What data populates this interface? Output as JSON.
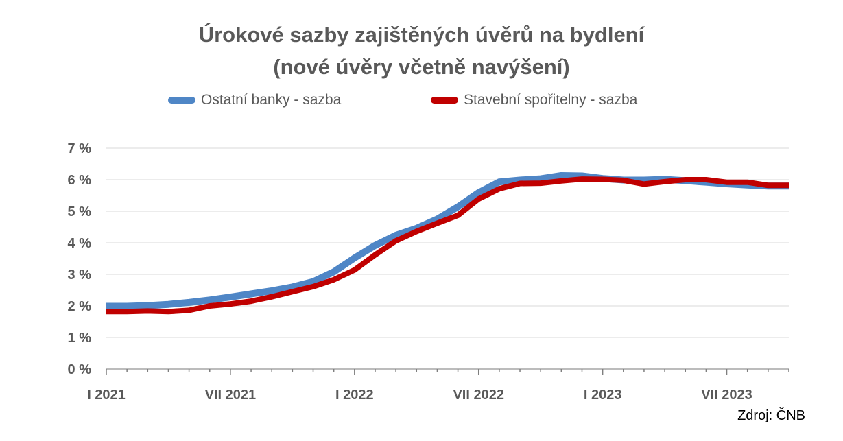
{
  "chart_data": {
    "type": "line",
    "title": "Úrokové sazby zajištěných úvěrů na bydlení",
    "subtitle": "(nové úvěry včetně navýšení)",
    "xlabel": "",
    "ylabel": "",
    "ylim": [
      0,
      7
    ],
    "y_ticks": [
      "0 %",
      "1 %",
      "2 %",
      "3 %",
      "4 %",
      "5 %",
      "6 %",
      "7 %"
    ],
    "x_tick_labels": [
      "I 2021",
      "VII 2021",
      "I 2022",
      "VII 2022",
      "I 2023",
      "VII 2023"
    ],
    "x": [
      "2021-01",
      "2021-02",
      "2021-03",
      "2021-04",
      "2021-05",
      "2021-06",
      "2021-07",
      "2021-08",
      "2021-09",
      "2021-10",
      "2021-11",
      "2021-12",
      "2022-01",
      "2022-02",
      "2022-03",
      "2022-04",
      "2022-05",
      "2022-06",
      "2022-07",
      "2022-08",
      "2022-09",
      "2022-10",
      "2022-11",
      "2022-12",
      "2023-01",
      "2023-02",
      "2023-03",
      "2023-04",
      "2023-05",
      "2023-06",
      "2023-07",
      "2023-08",
      "2023-09",
      "2023-10"
    ],
    "grid": true,
    "legend_position": "top",
    "series": [
      {
        "name": "Ostatní banky - sazba",
        "color": "#4F86C6",
        "values": [
          1.99,
          1.99,
          2.01,
          2.05,
          2.11,
          2.19,
          2.28,
          2.38,
          2.48,
          2.6,
          2.77,
          3.08,
          3.52,
          3.92,
          4.24,
          4.46,
          4.75,
          5.14,
          5.59,
          5.93,
          5.99,
          6.03,
          6.13,
          6.12,
          6.04,
          5.99,
          5.99,
          6.01,
          5.97,
          5.92,
          5.87,
          5.83,
          5.8,
          5.8
        ]
      },
      {
        "name": "Stavební spořitelny - sazba",
        "color": "#C00000",
        "values": [
          1.82,
          1.82,
          1.84,
          1.82,
          1.86,
          2.0,
          2.06,
          2.15,
          2.29,
          2.45,
          2.61,
          2.83,
          3.14,
          3.62,
          4.06,
          4.36,
          4.62,
          4.87,
          5.39,
          5.71,
          5.88,
          5.89,
          5.96,
          6.02,
          6.01,
          5.98,
          5.86,
          5.94,
          6.0,
          6.0,
          5.92,
          5.92,
          5.82,
          5.82
        ]
      }
    ]
  },
  "source": "Zdroj: ČNB"
}
